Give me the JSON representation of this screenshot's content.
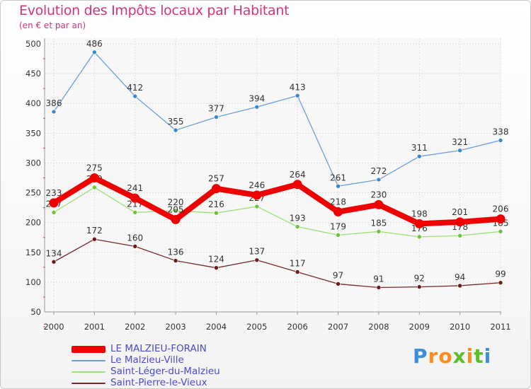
{
  "chart_data": {
    "type": "line",
    "title": "Evolution des Impôts locaux par Habitant",
    "subtitle": "(en € et par an)",
    "categories": [
      "2000",
      "2001",
      "2002",
      "2003",
      "2004",
      "2005",
      "2006",
      "2007",
      "2008",
      "2009",
      "2010",
      "2011"
    ],
    "ylim": [
      50,
      500
    ],
    "yticks": [
      "50",
      "100",
      "150",
      "200",
      "250",
      "300",
      "350",
      "400",
      "450",
      "500"
    ],
    "grid": true,
    "legend_position": "bottom-left",
    "series": [
      {
        "name": "Le Malzieu-Ville",
        "color": "#6b9fd6",
        "point_color": "#3a88cc",
        "values": [
          386,
          486,
          412,
          355,
          377,
          394,
          413,
          261,
          272,
          311,
          321,
          338
        ],
        "labels": [
          "386",
          "486",
          "412",
          "355",
          "377",
          "394",
          "413",
          "261",
          "272",
          "311",
          "321",
          "338"
        ],
        "thick": false
      },
      {
        "name": "Saint-Léger-du-Malzieu",
        "color": "#9ee07a",
        "point_color": "#6cc23a",
        "values": [
          217,
          259,
          217,
          220,
          216,
          227,
          193,
          179,
          185,
          176,
          178,
          185
        ],
        "labels": [
          "217",
          "259",
          "217",
          "220",
          "216",
          "227",
          "193",
          "179",
          "185",
          "176",
          "178",
          "185"
        ],
        "thick": false
      },
      {
        "name": "Saint-Pierre-le-Vieux",
        "color": "#7a2828",
        "point_color": "#6e1a1a",
        "values": [
          134,
          172,
          160,
          136,
          124,
          137,
          117,
          97,
          91,
          92,
          94,
          99
        ],
        "labels": [
          "134",
          "172",
          "160",
          "136",
          "124",
          "137",
          "117",
          "97",
          "91",
          "92",
          "94",
          "99"
        ],
        "thick": false
      },
      {
        "name": "LE MALZIEU-FORAIN",
        "color": "#ee0000",
        "point_color": "#ee0000",
        "values": [
          233,
          275,
          241,
          205,
          257,
          246,
          264,
          218,
          230,
          198,
          201,
          206
        ],
        "labels": [
          "233",
          "275",
          "241",
          "205",
          "257",
          "246",
          "264",
          "218",
          "230",
          "198",
          "201",
          "206"
        ],
        "thick": true
      }
    ],
    "legend_order": [
      3,
      0,
      1,
      2
    ]
  },
  "legend": [
    {
      "label": "LE MALZIEU-FORAIN",
      "color": "#ee0000"
    },
    {
      "label": "Le Malzieu-Ville",
      "color": "#6b9fd6"
    },
    {
      "label": "Saint-Léger-du-Malzieu",
      "color": "#9ee07a"
    },
    {
      "label": "Saint-Pierre-le-Vieux",
      "color": "#7a2828"
    }
  ],
  "logo": {
    "letters": [
      "P",
      "r",
      "o",
      "x",
      "i",
      "t",
      "i"
    ],
    "colors": [
      "#3a8fd8",
      "#ff8c1a",
      "#ff8c1a",
      "#5bbf2a",
      "#ff8c1a",
      "#5bbf2a",
      "#3a8fd8"
    ]
  }
}
